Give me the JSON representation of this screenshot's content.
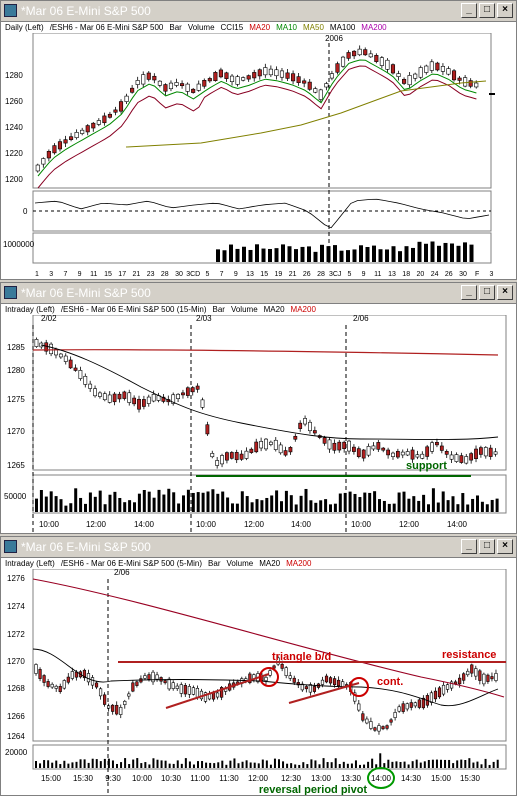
{
  "windows": [
    {
      "title": "*Mar 06  E-Mini S&P 500",
      "legend": [
        {
          "text": "Daily  (Left)",
          "color": "#000000"
        },
        {
          "text": "/ESH6 - Mar 06  E-Mini S&P 500",
          "color": "#000000"
        },
        {
          "text": "Bar",
          "color": "#000000"
        },
        {
          "text": "Volume",
          "color": "#000000"
        },
        {
          "text": "CCI15",
          "color": "#000000"
        },
        {
          "text": "MA20",
          "color": "#cc0000"
        },
        {
          "text": "MA10",
          "color": "#008800"
        },
        {
          "text": "MA50",
          "color": "#808000"
        },
        {
          "text": "MA100",
          "color": "#000000"
        },
        {
          "text": "MA200",
          "color": "#aa00aa"
        }
      ],
      "y_ticks": [
        "1280",
        "1260",
        "1240",
        "1220",
        "1200"
      ],
      "year_marker": "2006",
      "cci_ticks": [
        "0"
      ],
      "vol_ticks": [
        "1000000"
      ],
      "x_ticks": [
        "1",
        "3",
        "7",
        "9",
        "11",
        "15",
        "17",
        "21",
        "23",
        "28",
        "30",
        "3CD",
        "5",
        "7",
        "9",
        "13",
        "15",
        "19",
        "21",
        "26",
        "28",
        "3CJ",
        "5",
        "9",
        "11",
        "13",
        "18",
        "20",
        "24",
        "26",
        "30",
        "F",
        "3"
      ]
    },
    {
      "title": "*Mar 06  E-Mini S&P 500",
      "legend": [
        {
          "text": "Intraday  (Left)",
          "color": "#000000"
        },
        {
          "text": "/ESH6 - Mar 06  E-Mini S&P 500 (15-Min)",
          "color": "#000000"
        },
        {
          "text": "Bar",
          "color": "#000000"
        },
        {
          "text": "Volume",
          "color": "#000000"
        },
        {
          "text": "MA20",
          "color": "#000000"
        },
        {
          "text": "MA200",
          "color": "#cc0000"
        }
      ],
      "date_labels": [
        "2/02",
        "2/03",
        "2/06"
      ],
      "y_ticks": [
        "1285",
        "1280",
        "1275",
        "1270",
        "1265"
      ],
      "vol_ticks": [
        "50000"
      ],
      "x_ticks": [
        "10:00",
        "12:00",
        "14:00",
        "10:00",
        "12:00",
        "14:00",
        "10:00",
        "12:00",
        "14:00"
      ],
      "annotation": "support"
    },
    {
      "title": "*Mar 06  E-Mini S&P 500",
      "legend": [
        {
          "text": "Intraday  (Left)",
          "color": "#000000"
        },
        {
          "text": "/ESH6 - Mar 06  E-Mini S&P 500 (5-Min)",
          "color": "#000000"
        },
        {
          "text": "Bar",
          "color": "#000000"
        },
        {
          "text": "Volume",
          "color": "#000000"
        },
        {
          "text": "MA20",
          "color": "#000000"
        },
        {
          "text": "MA200",
          "color": "#cc0000"
        }
      ],
      "date_labels": [
        "2/06"
      ],
      "y_ticks": [
        "1276",
        "1274",
        "1272",
        "1270",
        "1268",
        "1266",
        "1264"
      ],
      "vol_ticks": [
        "20000"
      ],
      "x_ticks": [
        "15:00",
        "15:30",
        "9:30",
        "10:00",
        "10:30",
        "11:00",
        "11:30",
        "12:00",
        "12:30",
        "13:00",
        "13:30",
        "14:00",
        "14:30",
        "15:00",
        "15:30"
      ],
      "annotations": {
        "triangle": "triangle b/d",
        "cont": "cont.",
        "resistance": "resistance",
        "pivot": "reversal period pivot"
      }
    }
  ],
  "window_buttons": {
    "minimize": "_",
    "maximize": "□",
    "close": "×"
  },
  "colors": {
    "title_bg": "#d4d0c8",
    "up_bar": "#ffffff",
    "down_bar": "#b02020",
    "annotation_red": "#cc0000",
    "annotation_green": "#006600"
  }
}
